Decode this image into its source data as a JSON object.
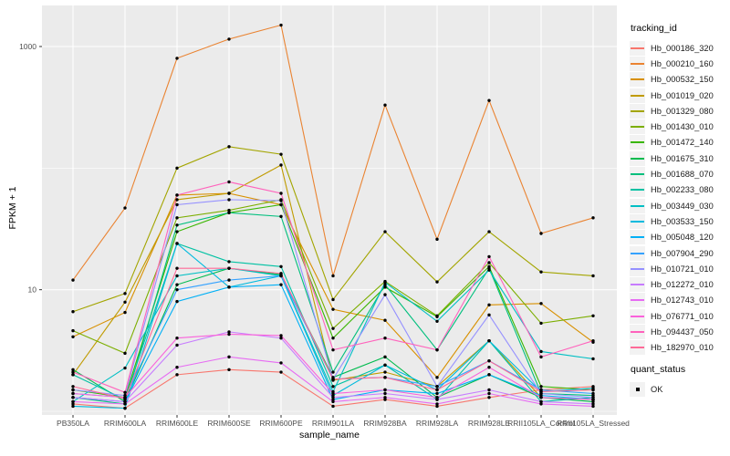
{
  "figure": {
    "y_axis": {
      "title": "FPKM + 1",
      "scale": "log10",
      "tick_labels": [
        "1000",
        "10"
      ],
      "tick_values": [
        1000,
        10
      ]
    },
    "x_axis": {
      "title": "sample_name"
    },
    "legend": {
      "tracking_title": "tracking_id",
      "quant_title": "quant_status",
      "quant_items": [
        {
          "label": "OK"
        }
      ]
    },
    "colors": {
      "panel_bg": "#EBEBEB",
      "grid": "#FFFFFF",
      "tick_text": "#4D4D4D",
      "tick_mark": "#333333",
      "point": "#000000",
      "legend_key_bg": "#F2F2F2"
    }
  },
  "chart_data": {
    "type": "line",
    "title": "",
    "xlabel": "sample_name",
    "ylabel": "FPKM + 1",
    "yscale": "log10",
    "ylim": [
      0.93,
      2200
    ],
    "grid": true,
    "legend_position": "right",
    "note": "values are plotted as FPKM + 1 on a log10 axis; black points mark quant_status OK",
    "x": [
      "PB350LA",
      "RRIM600LA",
      "RRIM600LE",
      "RRIM600SE",
      "RRIM600PE",
      "RRIM901LA",
      "RRIM928BA",
      "RRIM928LA",
      "RRIM928LE",
      "RRII105LA_Control",
      "RRII105LA_Stressed"
    ],
    "series": [
      {
        "name": "Hb_000186_320",
        "color": "#F8766D",
        "values": [
          1.15,
          1.06,
          2.0,
          2.2,
          2.1,
          1.1,
          1.25,
          1.1,
          1.3,
          1.5,
          1.6
        ]
      },
      {
        "name": "Hb_000210_160",
        "color": "#EA8331",
        "values": [
          12,
          47,
          800,
          1150,
          1500,
          13,
          330,
          26,
          360,
          29,
          39
        ]
      },
      {
        "name": "Hb_000532_150",
        "color": "#D89000",
        "values": [
          4.1,
          6.5,
          60,
          62,
          50,
          6.9,
          5.6,
          1.9,
          7.5,
          7.7,
          3.7
        ]
      },
      {
        "name": "Hb_001019_020",
        "color": "#C09B00",
        "values": [
          2.0,
          7.9,
          55,
          62,
          106,
          1.8,
          2.1,
          1.6,
          3.8,
          1.3,
          1.25
        ]
      },
      {
        "name": "Hb_001329_080",
        "color": "#A3A500",
        "values": [
          6.6,
          9.3,
          100,
          150,
          130,
          8.3,
          30,
          11.6,
          30,
          14,
          13
        ]
      },
      {
        "name": "Hb_001430_010",
        "color": "#7CAE00",
        "values": [
          4.6,
          3.0,
          39,
          45,
          55,
          4.8,
          11.7,
          6.1,
          16.7,
          5.3,
          6.1
        ]
      },
      {
        "name": "Hb_001472_140",
        "color": "#39B600",
        "values": [
          1.5,
          1.3,
          30,
          43,
          50,
          4.0,
          10.5,
          6.0,
          15.5,
          1.6,
          1.5
        ]
      },
      {
        "name": "Hb_001675_310",
        "color": "#00BB4E",
        "values": [
          2.2,
          1.2,
          11,
          15,
          13.3,
          1.9,
          2.8,
          1.3,
          2.0,
          1.3,
          1.2
        ]
      },
      {
        "name": "Hb_001688_070",
        "color": "#00BF7D",
        "values": [
          1.3,
          1.15,
          34,
          43,
          40,
          2.1,
          11.0,
          3.2,
          15,
          1.4,
          1.35
        ]
      },
      {
        "name": "Hb_002233_080",
        "color": "#00C1A3",
        "values": [
          2.0,
          1.25,
          24,
          17,
          15.5,
          1.6,
          2.4,
          1.25,
          3.8,
          1.2,
          1.3
        ]
      },
      {
        "name": "Hb_003449_030",
        "color": "#00BFC4",
        "values": [
          1.2,
          2.27,
          13,
          15,
          13,
          1.45,
          11.5,
          5.5,
          14.5,
          3.1,
          2.7
        ]
      },
      {
        "name": "Hb_003533_150",
        "color": "#00BADE",
        "values": [
          1.1,
          1.06,
          24,
          10.5,
          13,
          1.35,
          2.4,
          1.5,
          3.8,
          1.45,
          1.55
        ]
      },
      {
        "name": "Hb_005048_120",
        "color": "#00B0F6",
        "values": [
          1.3,
          1.2,
          8,
          10.5,
          11,
          1.25,
          1.5,
          1.4,
          2.0,
          1.35,
          1.25
        ]
      },
      {
        "name": "Hb_007904_290",
        "color": "#35A2FF",
        "values": [
          1.4,
          1.3,
          10,
          12,
          13,
          1.84,
          1.9,
          1.6,
          2.6,
          1.5,
          1.4
        ]
      },
      {
        "name": "Hb_010721_010",
        "color": "#9590FF",
        "values": [
          1.5,
          1.35,
          50,
          55,
          54,
          1.84,
          9.1,
          1.6,
          6.2,
          1.4,
          1.3
        ]
      },
      {
        "name": "Hb_012272_010",
        "color": "#C77CFF",
        "values": [
          1.3,
          1.2,
          3.5,
          4.5,
          4.0,
          1.3,
          1.4,
          1.25,
          1.5,
          1.2,
          1.15
        ]
      },
      {
        "name": "Hb_012743_010",
        "color": "#E76BF3",
        "values": [
          1.2,
          1.15,
          2.3,
          2.8,
          2.5,
          1.2,
          1.3,
          1.15,
          1.4,
          1.15,
          1.1
        ]
      },
      {
        "name": "Hb_076771_010",
        "color": "#FA62DB",
        "values": [
          1.4,
          1.3,
          4.0,
          4.3,
          4.2,
          1.4,
          1.5,
          1.3,
          2.3,
          1.3,
          1.25
        ]
      },
      {
        "name": "Hb_094437_050",
        "color": "#FF62BC",
        "values": [
          2.1,
          1.43,
          60,
          77,
          62,
          3.2,
          4.0,
          3.2,
          18.7,
          2.8,
          3.8
        ]
      },
      {
        "name": "Hb_182970_010",
        "color": "#FF6A98",
        "values": [
          1.6,
          1.27,
          15,
          15,
          13.6,
          1.84,
          1.9,
          1.5,
          2.6,
          1.45,
          1.5
        ]
      }
    ]
  }
}
